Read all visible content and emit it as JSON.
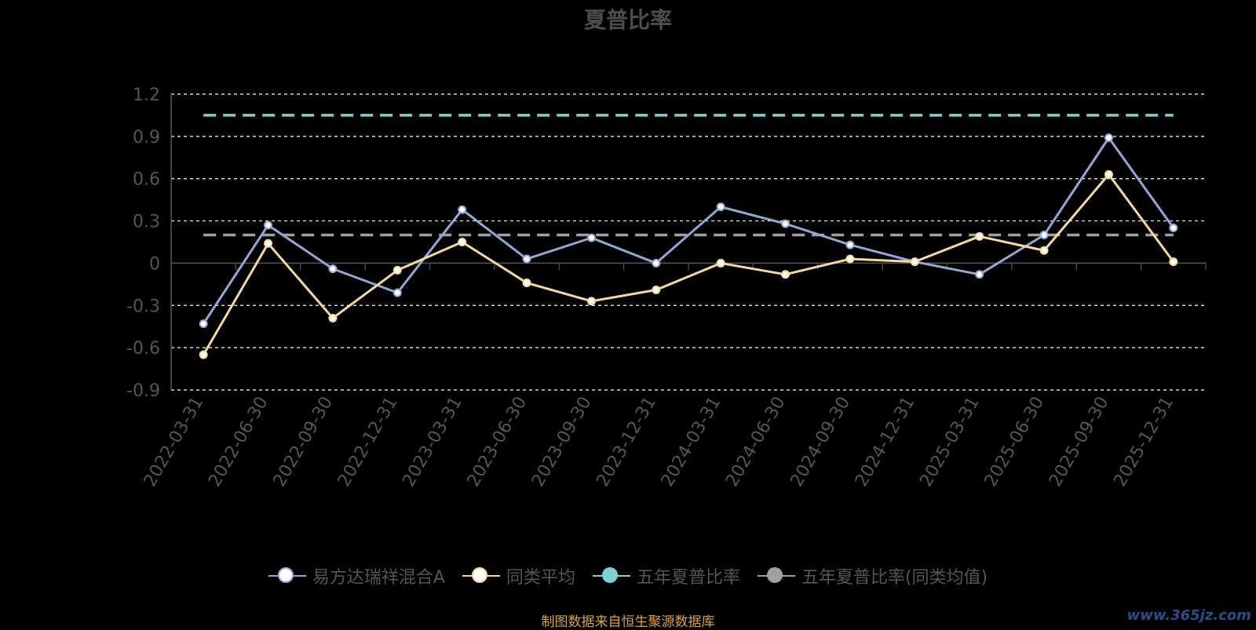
{
  "chart_data": {
    "type": "line",
    "title": "夏普比率",
    "categories": [
      "2022-03-31",
      "2022-06-30",
      "2022-09-30",
      "2022-12-31",
      "2023-03-31",
      "2023-06-30",
      "2023-09-30",
      "2023-12-31",
      "2024-03-31",
      "2024-06-30",
      "2024-09-30",
      "2024-12-31",
      "2025-03-31",
      "2025-06-30",
      "2025-09-30",
      "2025-12-31"
    ],
    "yticks": [
      1.2,
      0.9,
      0.6,
      0.3,
      0,
      -0.3,
      -0.6,
      -0.9
    ],
    "ylim": [
      -0.9,
      1.2
    ],
    "grid": true,
    "legend_position": "bottom",
    "series": [
      {
        "name": "易方达瑞祥混合A",
        "color": "#8fa8d6",
        "values": [
          -0.43,
          0.27,
          -0.04,
          -0.21,
          0.38,
          0.03,
          0.18,
          0.0,
          0.4,
          0.28,
          0.13,
          0.01,
          -0.08,
          0.2,
          0.89,
          0.25
        ]
      },
      {
        "name": "同类平均",
        "color": "#f5d99c",
        "values": [
          -0.65,
          0.14,
          -0.39,
          -0.05,
          0.15,
          -0.14,
          -0.27,
          -0.19,
          0.0,
          -0.08,
          0.03,
          0.01,
          0.19,
          0.09,
          0.63,
          0.01
        ]
      },
      {
        "name": "五年夏普比率",
        "color": "#7fd1d1",
        "constant": 1.05,
        "dashed": true
      },
      {
        "name": "五年夏普比率(同类均值)",
        "color": "#a0a0a0",
        "constant": 0.2,
        "dashed": true
      }
    ]
  },
  "footer": {
    "source": "制图数据来自恒生聚源数据库",
    "watermark": "www.365jz.com"
  }
}
